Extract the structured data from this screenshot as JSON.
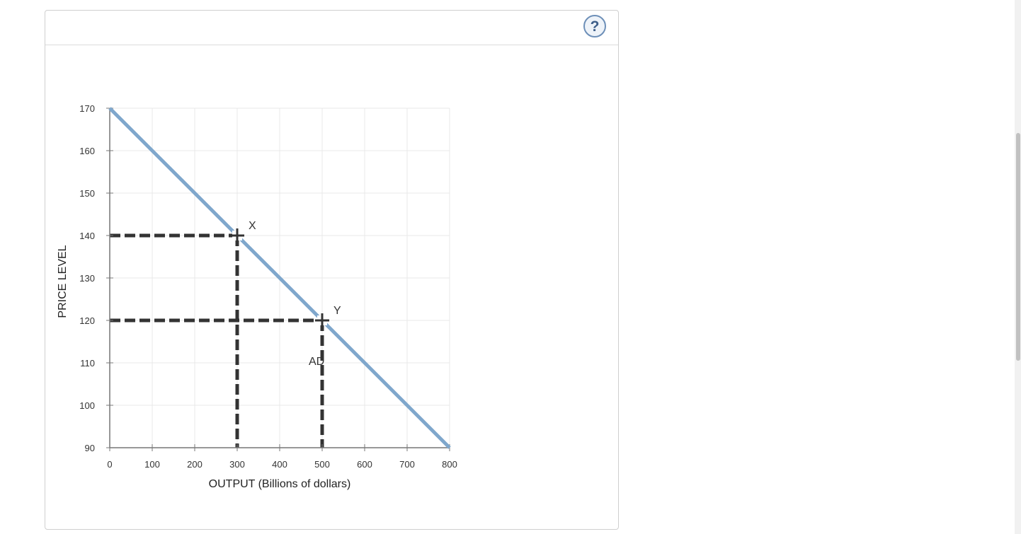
{
  "help": {
    "label": "?"
  },
  "chart_data": {
    "type": "line",
    "xlabel": "OUTPUT (Billions of dollars)",
    "ylabel": "PRICE LEVEL",
    "xlim": [
      0,
      800
    ],
    "ylim": [
      90,
      170
    ],
    "x_ticks": [
      0,
      100,
      200,
      300,
      400,
      500,
      600,
      700,
      800
    ],
    "y_ticks": [
      90,
      100,
      110,
      120,
      130,
      140,
      150,
      160,
      170
    ],
    "grid": true,
    "series": [
      {
        "name": "AD",
        "x": [
          0,
          800
        ],
        "y": [
          170,
          90
        ],
        "color": "#7fa7cc"
      }
    ],
    "points": [
      {
        "label": "X",
        "x": 300,
        "y": 140
      },
      {
        "label": "Y",
        "x": 500,
        "y": 120
      }
    ],
    "curve_label": {
      "text": "AD",
      "x": 635,
      "y": 110
    },
    "guide_color": "#333333"
  }
}
